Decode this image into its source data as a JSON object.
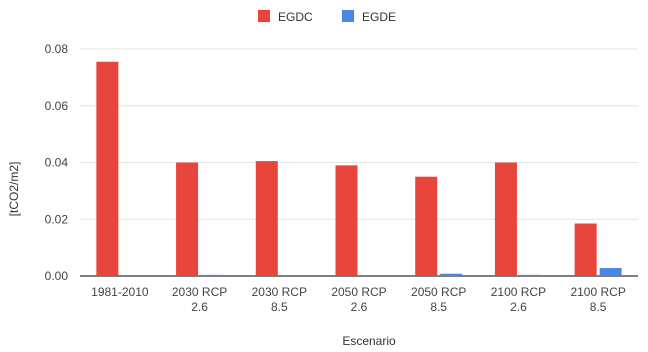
{
  "chart_data": {
    "type": "bar",
    "categories": [
      [
        "1981-2010"
      ],
      [
        "2030 RCP",
        "2.6"
      ],
      [
        "2030 RCP",
        "8.5"
      ],
      [
        "2050 RCP",
        "2.6"
      ],
      [
        "2050 RCP",
        "8.5"
      ],
      [
        "2100 RCP",
        "2.6"
      ],
      [
        "2100 RCP",
        "8.5"
      ]
    ],
    "series": [
      {
        "name": "EGDC",
        "color": "#e8453c",
        "values": [
          0.0755,
          0.04,
          0.0405,
          0.039,
          0.035,
          0.04,
          0.0185
        ]
      },
      {
        "name": "EGDE",
        "color": "#4a86e8",
        "values": [
          0.0,
          0.0004,
          0.0,
          0.0,
          0.0008,
          0.0004,
          0.0028
        ]
      }
    ],
    "xlabel": "Escenario",
    "ylabel": "[tCO2/m2]",
    "ylim": [
      0,
      0.08
    ],
    "yticks": [
      "0.00",
      "0.02",
      "0.04",
      "0.06",
      "0.08"
    ],
    "grid": true,
    "legend": "top-center"
  }
}
